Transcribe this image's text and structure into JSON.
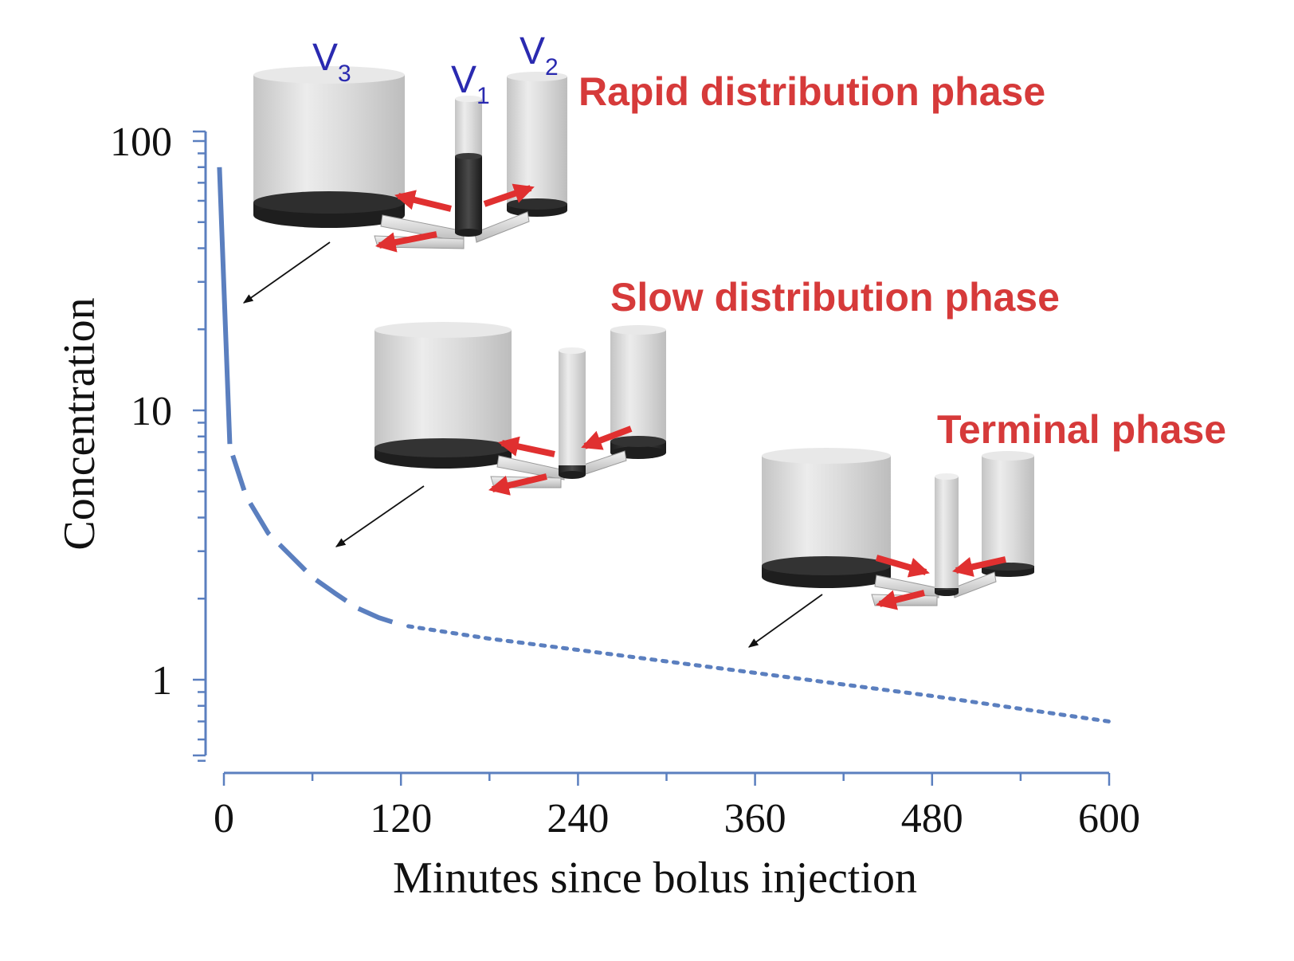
{
  "chart_data": {
    "type": "line",
    "xlabel": "Minutes since bolus injection",
    "ylabel": "Concentration",
    "y_scale": "log",
    "xlim": [
      0,
      600
    ],
    "ylim": [
      0.5,
      100
    ],
    "x_ticks": [
      0,
      120,
      240,
      360,
      480,
      600
    ],
    "x_tick_labels": [
      "0",
      "120",
      "240",
      "360",
      "480",
      "600"
    ],
    "y_ticks": [
      1,
      10,
      100
    ],
    "y_tick_labels": [
      "1",
      "10",
      "100"
    ],
    "grid": false,
    "series": [
      {
        "line_style": "solid",
        "color": "#5b7fbf",
        "x": [
          -3,
          4
        ],
        "y": [
          80,
          7.5
        ]
      },
      {
        "line_style": "dashed",
        "color": "#5b7fbf",
        "x": [
          6,
          15,
          30,
          45,
          60,
          75,
          90,
          105,
          120
        ],
        "y": [
          6.8,
          4.8,
          3.5,
          2.9,
          2.4,
          2.1,
          1.85,
          1.7,
          1.6
        ]
      },
      {
        "line_style": "dotted",
        "color": "#5b7fbf",
        "x": [
          125,
          180,
          240,
          300,
          360,
          420,
          480,
          540,
          600
        ],
        "y": [
          1.58,
          1.42,
          1.29,
          1.17,
          1.06,
          0.96,
          0.87,
          0.78,
          0.7
        ]
      }
    ],
    "annotations": [
      {
        "text": "Rapid distribution phase",
        "color": "#d63a3a"
      },
      {
        "text": "Slow distribution phase",
        "color": "#d63a3a"
      },
      {
        "text": "Terminal phase",
        "color": "#d63a3a"
      }
    ],
    "compartment_labels": {
      "v3": {
        "base": "V",
        "sub": "3"
      },
      "v1": {
        "base": "V",
        "sub": "1"
      },
      "v2": {
        "base": "V",
        "sub": "2"
      },
      "color": "#2a2ab0"
    },
    "axis_color": "#5b7fbf",
    "arrow_color": "#e03030"
  }
}
